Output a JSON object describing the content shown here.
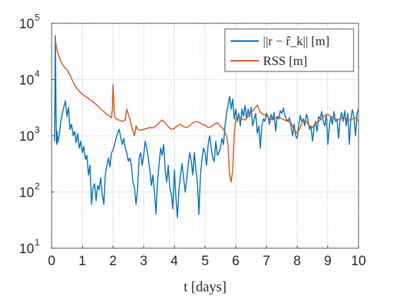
{
  "chart_data": {
    "type": "line",
    "title": "",
    "xlabel": "t [days]",
    "ylabel": "",
    "xlim": [
      0,
      10
    ],
    "ylim": [
      10,
      100000
    ],
    "yscale": "log",
    "grid": true,
    "legend_position": "top-right",
    "x_ticks": [
      "0",
      "1",
      "2",
      "3",
      "4",
      "5",
      "6",
      "7",
      "8",
      "9",
      "10"
    ],
    "y_ticks": [
      {
        "base": "10",
        "exp": "1"
      },
      {
        "base": "10",
        "exp": "2"
      },
      {
        "base": "10",
        "exp": "3"
      },
      {
        "base": "10",
        "exp": "4"
      },
      {
        "base": "10",
        "exp": "5"
      }
    ],
    "series": [
      {
        "name": "||r − r̂_k|| [m]",
        "color": "#0072BD",
        "points": [
          [
            0.1,
            800
          ],
          [
            0.12,
            60000
          ],
          [
            0.14,
            3000
          ],
          [
            0.16,
            700
          ],
          [
            0.18,
            1200
          ],
          [
            0.2,
            750
          ],
          [
            0.25,
            1000
          ],
          [
            0.3,
            1800
          ],
          [
            0.35,
            2500
          ],
          [
            0.4,
            3300
          ],
          [
            0.45,
            4200
          ],
          [
            0.5,
            2200
          ],
          [
            0.55,
            3200
          ],
          [
            0.6,
            1300
          ],
          [
            0.65,
            1600
          ],
          [
            0.7,
            1000
          ],
          [
            0.75,
            1200
          ],
          [
            0.8,
            750
          ],
          [
            0.85,
            1100
          ],
          [
            0.9,
            600
          ],
          [
            0.95,
            800
          ],
          [
            1.0,
            500
          ],
          [
            1.05,
            650
          ],
          [
            1.1,
            380
          ],
          [
            1.15,
            450
          ],
          [
            1.2,
            200
          ],
          [
            1.25,
            300
          ],
          [
            1.3,
            60
          ],
          [
            1.35,
            120
          ],
          [
            1.4,
            140
          ],
          [
            1.45,
            70
          ],
          [
            1.5,
            130
          ],
          [
            1.55,
            110
          ],
          [
            1.6,
            180
          ],
          [
            1.65,
            90
          ],
          [
            1.7,
            60
          ],
          [
            1.75,
            200
          ],
          [
            1.8,
            300
          ],
          [
            1.85,
            400
          ],
          [
            1.9,
            280
          ],
          [
            1.95,
            500
          ],
          [
            2.0,
            550
          ],
          [
            2.05,
            700
          ],
          [
            2.1,
            900
          ],
          [
            2.15,
            1100
          ],
          [
            2.2,
            1300
          ],
          [
            2.25,
            950
          ],
          [
            2.3,
            700
          ],
          [
            2.35,
            900
          ],
          [
            2.4,
            600
          ],
          [
            2.45,
            500
          ],
          [
            2.5,
            350
          ],
          [
            2.55,
            400
          ],
          [
            2.6,
            300
          ],
          [
            2.65,
            150
          ],
          [
            2.7,
            120
          ],
          [
            2.75,
            60
          ],
          [
            2.8,
            110
          ],
          [
            2.85,
            400
          ],
          [
            2.9,
            500
          ],
          [
            2.95,
            300
          ],
          [
            3.0,
            450
          ],
          [
            3.05,
            800
          ],
          [
            3.1,
            600
          ],
          [
            3.15,
            400
          ],
          [
            3.2,
            250
          ],
          [
            3.25,
            130
          ],
          [
            3.3,
            200
          ],
          [
            3.35,
            100
          ],
          [
            3.4,
            40
          ],
          [
            3.45,
            150
          ],
          [
            3.5,
            300
          ],
          [
            3.55,
            600
          ],
          [
            3.6,
            450
          ],
          [
            3.65,
            700
          ],
          [
            3.7,
            250
          ],
          [
            3.75,
            150
          ],
          [
            3.8,
            300
          ],
          [
            3.85,
            120
          ],
          [
            3.9,
            90
          ],
          [
            3.95,
            50
          ],
          [
            4.0,
            250
          ],
          [
            4.05,
            80
          ],
          [
            4.1,
            35
          ],
          [
            4.15,
            110
          ],
          [
            4.2,
            200
          ],
          [
            4.25,
            320
          ],
          [
            4.3,
            180
          ],
          [
            4.35,
            100
          ],
          [
            4.4,
            160
          ],
          [
            4.45,
            300
          ],
          [
            4.5,
            500
          ],
          [
            4.55,
            350
          ],
          [
            4.6,
            200
          ],
          [
            4.65,
            500
          ],
          [
            4.7,
            250
          ],
          [
            4.75,
            150
          ],
          [
            4.8,
            40
          ],
          [
            4.85,
            200
          ],
          [
            4.9,
            400
          ],
          [
            4.95,
            600
          ],
          [
            5.0,
            500
          ],
          [
            5.05,
            300
          ],
          [
            5.1,
            700
          ],
          [
            5.15,
            1000
          ],
          [
            5.2,
            600
          ],
          [
            5.25,
            400
          ],
          [
            5.3,
            350
          ],
          [
            5.35,
            800
          ],
          [
            5.4,
            450
          ],
          [
            5.45,
            500
          ],
          [
            5.5,
            600
          ],
          [
            5.55,
            900
          ],
          [
            5.6,
            700
          ],
          [
            5.65,
            1500
          ],
          [
            5.7,
            2500
          ],
          [
            5.75,
            3500
          ],
          [
            5.8,
            5000
          ],
          [
            5.85,
            3000
          ],
          [
            5.9,
            4500
          ],
          [
            5.95,
            2000
          ],
          [
            6.0,
            3000
          ],
          [
            6.05,
            1800
          ],
          [
            6.1,
            2500
          ],
          [
            6.15,
            1500
          ],
          [
            6.2,
            3000
          ],
          [
            6.25,
            2200
          ],
          [
            6.3,
            3500
          ],
          [
            6.35,
            2000
          ],
          [
            6.4,
            3000
          ],
          [
            6.45,
            2200
          ],
          [
            6.5,
            3200
          ],
          [
            6.55,
            1500
          ],
          [
            6.6,
            2000
          ],
          [
            6.65,
            2500
          ],
          [
            6.7,
            1100
          ],
          [
            6.75,
            1500
          ],
          [
            6.8,
            600
          ],
          [
            6.85,
            1500
          ],
          [
            6.9,
            2000
          ],
          [
            6.95,
            1800
          ],
          [
            7.0,
            2500
          ],
          [
            7.05,
            2200
          ],
          [
            7.1,
            1600
          ],
          [
            7.15,
            2400
          ],
          [
            7.2,
            1900
          ],
          [
            7.25,
            2600
          ],
          [
            7.3,
            1200
          ],
          [
            7.35,
            2200
          ],
          [
            7.4,
            2000
          ],
          [
            7.45,
            2800
          ],
          [
            7.5,
            2500
          ],
          [
            7.55,
            3100
          ],
          [
            7.6,
            2300
          ],
          [
            7.65,
            2000
          ],
          [
            7.7,
            1800
          ],
          [
            7.75,
            2100
          ],
          [
            7.8,
            1500
          ],
          [
            7.85,
            1000
          ],
          [
            7.9,
            1600
          ],
          [
            7.95,
            1000
          ],
          [
            8.0,
            900
          ],
          [
            8.05,
            1500
          ],
          [
            8.1,
            2300
          ],
          [
            8.15,
            1800
          ],
          [
            8.2,
            2000
          ],
          [
            8.25,
            1500
          ],
          [
            8.3,
            2400
          ],
          [
            8.35,
            2000
          ],
          [
            8.4,
            1300
          ],
          [
            8.45,
            1500
          ],
          [
            8.5,
            800
          ],
          [
            8.55,
            1400
          ],
          [
            8.6,
            1800
          ],
          [
            8.65,
            1200
          ],
          [
            8.7,
            2200
          ],
          [
            8.75,
            2000
          ],
          [
            8.8,
            2700
          ],
          [
            8.85,
            1800
          ],
          [
            8.9,
            1500
          ],
          [
            8.95,
            2400
          ],
          [
            9.0,
            700
          ],
          [
            9.05,
            1500
          ],
          [
            9.1,
            2200
          ],
          [
            9.15,
            1600
          ],
          [
            9.2,
            2700
          ],
          [
            9.25,
            1800
          ],
          [
            9.3,
            2000
          ],
          [
            9.35,
            900
          ],
          [
            9.4,
            2000
          ],
          [
            9.45,
            2600
          ],
          [
            9.5,
            1800
          ],
          [
            9.55,
            2800
          ],
          [
            9.6,
            1500
          ],
          [
            9.65,
            2500
          ],
          [
            9.7,
            700
          ],
          [
            9.75,
            2000
          ],
          [
            9.8,
            2900
          ],
          [
            9.85,
            2200
          ],
          [
            9.9,
            1000
          ],
          [
            9.95,
            2500
          ],
          [
            10.0,
            3000
          ]
        ]
      },
      {
        "name": "RSS [m]",
        "color": "#D95319",
        "points": [
          [
            0.12,
            50000
          ],
          [
            0.15,
            40000
          ],
          [
            0.2,
            30000
          ],
          [
            0.3,
            21000
          ],
          [
            0.4,
            17000
          ],
          [
            0.5,
            15000
          ],
          [
            0.6,
            12000
          ],
          [
            0.7,
            9000
          ],
          [
            0.8,
            7200
          ],
          [
            0.9,
            6200
          ],
          [
            1.0,
            5500
          ],
          [
            1.1,
            5000
          ],
          [
            1.2,
            4600
          ],
          [
            1.3,
            4200
          ],
          [
            1.4,
            3800
          ],
          [
            1.5,
            3400
          ],
          [
            1.6,
            3000
          ],
          [
            1.7,
            2700
          ],
          [
            1.8,
            2400
          ],
          [
            1.9,
            2200
          ],
          [
            1.95,
            2100
          ],
          [
            1.98,
            3000
          ],
          [
            2.0,
            8000
          ],
          [
            2.02,
            5000
          ],
          [
            2.05,
            2200
          ],
          [
            2.1,
            2000
          ],
          [
            2.2,
            1900
          ],
          [
            2.3,
            1800
          ],
          [
            2.4,
            1900
          ],
          [
            2.45,
            3000
          ],
          [
            2.5,
            2400
          ],
          [
            2.55,
            2000
          ],
          [
            2.6,
            1500
          ],
          [
            2.65,
            1200
          ],
          [
            2.7,
            1000
          ],
          [
            2.75,
            1500
          ],
          [
            2.8,
            1300
          ],
          [
            2.9,
            1250
          ],
          [
            3.0,
            1300
          ],
          [
            3.1,
            1350
          ],
          [
            3.2,
            1400
          ],
          [
            3.3,
            1380
          ],
          [
            3.4,
            1500
          ],
          [
            3.5,
            1700
          ],
          [
            3.6,
            1900
          ],
          [
            3.7,
            1700
          ],
          [
            3.8,
            1450
          ],
          [
            3.9,
            1300
          ],
          [
            4.0,
            1350
          ],
          [
            4.1,
            1500
          ],
          [
            4.2,
            1600
          ],
          [
            4.3,
            1450
          ],
          [
            4.4,
            1400
          ],
          [
            4.5,
            1500
          ],
          [
            4.6,
            1700
          ],
          [
            4.7,
            1800
          ],
          [
            4.8,
            1750
          ],
          [
            4.9,
            1600
          ],
          [
            5.0,
            1550
          ],
          [
            5.1,
            1400
          ],
          [
            5.2,
            1450
          ],
          [
            5.3,
            1600
          ],
          [
            5.4,
            1700
          ],
          [
            5.5,
            1500
          ],
          [
            5.6,
            1300
          ],
          [
            5.7,
            1000
          ],
          [
            5.75,
            700
          ],
          [
            5.8,
            200
          ],
          [
            5.85,
            150
          ],
          [
            5.9,
            250
          ],
          [
            5.95,
            1000
          ],
          [
            6.0,
            2000
          ],
          [
            6.1,
            2200
          ],
          [
            6.2,
            2000
          ],
          [
            6.3,
            1900
          ],
          [
            6.4,
            2200
          ],
          [
            6.5,
            2600
          ],
          [
            6.6,
            3000
          ],
          [
            6.7,
            3500
          ],
          [
            6.75,
            3000
          ],
          [
            6.8,
            2600
          ],
          [
            6.9,
            2400
          ],
          [
            7.0,
            2300
          ],
          [
            7.1,
            2000
          ],
          [
            7.2,
            1900
          ],
          [
            7.3,
            2100
          ],
          [
            7.4,
            2200
          ],
          [
            7.5,
            2000
          ],
          [
            7.6,
            1900
          ],
          [
            7.7,
            1800
          ],
          [
            7.8,
            1700
          ],
          [
            7.9,
            1300
          ],
          [
            8.0,
            1100
          ],
          [
            8.1,
            1400
          ],
          [
            8.2,
            1900
          ],
          [
            8.3,
            1800
          ],
          [
            8.4,
            1500
          ],
          [
            8.5,
            1400
          ],
          [
            8.6,
            1700
          ],
          [
            8.7,
            1800
          ],
          [
            8.8,
            2000
          ],
          [
            8.9,
            2300
          ],
          [
            9.0,
            2400
          ],
          [
            9.1,
            2200
          ],
          [
            9.2,
            2000
          ],
          [
            9.3,
            1900
          ],
          [
            9.4,
            2000
          ],
          [
            9.5,
            2100
          ],
          [
            9.6,
            2000
          ],
          [
            9.7,
            1900
          ],
          [
            9.8,
            2000
          ],
          [
            9.9,
            2100
          ],
          [
            10.0,
            1800
          ]
        ]
      }
    ]
  }
}
